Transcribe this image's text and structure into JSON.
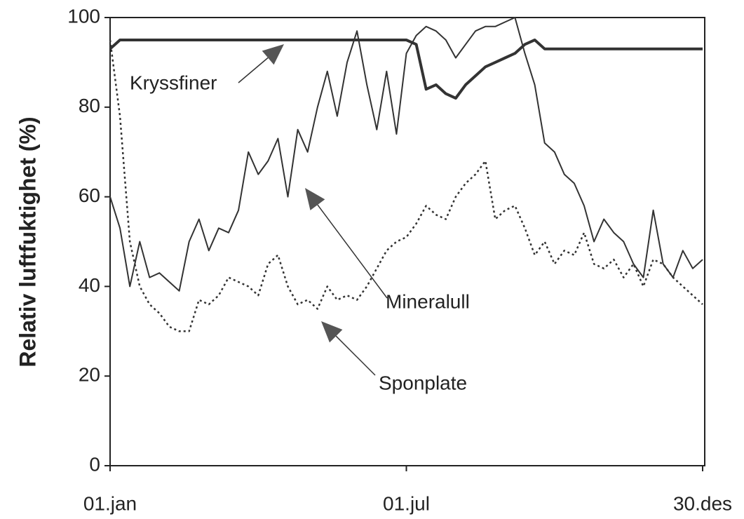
{
  "chart_data": {
    "type": "line",
    "y_label": "Relativ luftfuktighet (%)",
    "categories": [
      "01.jan",
      null,
      null,
      null,
      null,
      null,
      null,
      null,
      null,
      null,
      null,
      null,
      null,
      null,
      null,
      null,
      null,
      null,
      null,
      null,
      null,
      null,
      null,
      null,
      null,
      null,
      null,
      null,
      null,
      null,
      "01.jul",
      null,
      null,
      null,
      null,
      null,
      null,
      null,
      null,
      null,
      null,
      null,
      null,
      null,
      null,
      null,
      null,
      null,
      null,
      null,
      null,
      null,
      null,
      null,
      null,
      null,
      null,
      null,
      null,
      null,
      "30.des"
    ],
    "ylim": [
      0,
      100
    ],
    "yticks": [
      0,
      20,
      40,
      60,
      80,
      100
    ],
    "grid": false,
    "series": [
      {
        "name": "Kryssfiner",
        "color": "#333333",
        "style": "solid",
        "width": 4,
        "values": [
          93,
          95,
          95,
          95,
          95,
          95,
          95,
          95,
          95,
          95,
          95,
          95,
          95,
          95,
          95,
          95,
          95,
          95,
          95,
          95,
          95,
          95,
          95,
          95,
          95,
          95,
          95,
          95,
          95,
          95,
          95,
          94,
          84,
          85,
          83,
          82,
          85,
          87,
          89,
          90,
          91,
          92,
          94,
          95,
          93,
          93,
          93,
          93,
          93,
          93,
          93,
          93,
          93,
          93,
          93,
          93,
          93,
          93,
          93,
          93,
          93
        ]
      },
      {
        "name": "Mineralull",
        "color": "#333333",
        "style": "solid",
        "width": 2,
        "values": [
          60,
          53,
          40,
          50,
          42,
          43,
          41,
          39,
          50,
          55,
          48,
          53,
          52,
          57,
          70,
          65,
          68,
          73,
          60,
          75,
          70,
          80,
          88,
          78,
          90,
          97,
          85,
          75,
          88,
          74,
          92,
          96,
          98,
          97,
          95,
          91,
          94,
          97,
          98,
          98,
          99,
          100,
          92,
          85,
          72,
          70,
          65,
          63,
          58,
          50,
          55,
          52,
          50,
          45,
          42,
          57,
          45,
          42,
          48,
          44,
          46
        ]
      },
      {
        "name": "Sponplate",
        "color": "#333333",
        "style": "dotted",
        "width": 2.5,
        "values": [
          95,
          78,
          50,
          40,
          36,
          34,
          31,
          30,
          30,
          37,
          36,
          38,
          42,
          41,
          40,
          38,
          45,
          47,
          40,
          36,
          37,
          35,
          40,
          37,
          38,
          37,
          40,
          44,
          48,
          50,
          51,
          54,
          58,
          56,
          55,
          60,
          63,
          65,
          68,
          55,
          57,
          58,
          53,
          47,
          50,
          45,
          48,
          47,
          52,
          45,
          44,
          46,
          42,
          45,
          40,
          46,
          45,
          42,
          40,
          38,
          36
        ]
      }
    ]
  }
}
